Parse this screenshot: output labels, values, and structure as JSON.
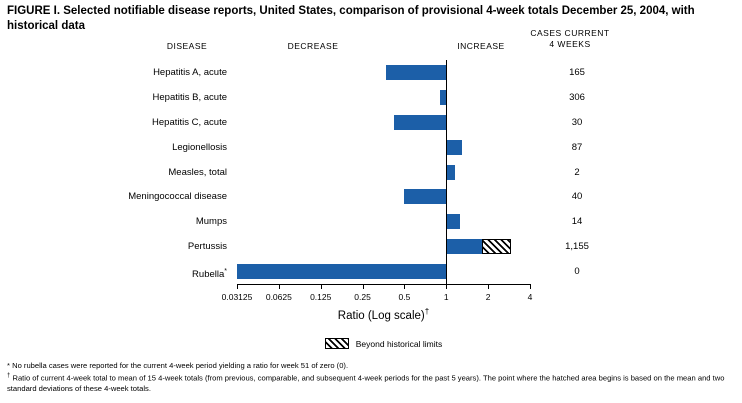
{
  "title": "FIGURE I. Selected notifiable disease reports, United States, comparison of provisional 4-week totals December 25, 2004, with historical data",
  "headers": {
    "disease": "DISEASE",
    "decrease": "DECREASE",
    "increase": "INCREASE",
    "cases_line1": "CASES CURRENT",
    "cases_line2": "4 WEEKS"
  },
  "chart_data": {
    "type": "bar",
    "orientation": "horizontal",
    "scale": "log2",
    "baseline": 1,
    "xlim": [
      0.03125,
      4
    ],
    "ticks": [
      0.03125,
      0.0625,
      0.125,
      0.25,
      0.5,
      1,
      2,
      4
    ],
    "tick_labels": [
      "0.03125",
      "0.0625",
      "0.125",
      "0.25",
      "0.5",
      "1",
      "2",
      "4"
    ],
    "xlabel": "Ratio (Log scale)",
    "xlabel_sup": "†",
    "bar_color": "#1c5fa8",
    "legend": {
      "label": "Beyond historical limits",
      "swatch": "hatched"
    },
    "rows": [
      {
        "disease": "Hepatitis A, acute",
        "ratio": 0.37,
        "cases": "165"
      },
      {
        "disease": "Hepatitis B, acute",
        "ratio": 0.9,
        "cases": "306"
      },
      {
        "disease": "Hepatitis C, acute",
        "ratio": 0.42,
        "cases": "30"
      },
      {
        "disease": "Legionellosis",
        "ratio": 1.3,
        "cases": "87"
      },
      {
        "disease": "Measles, total",
        "ratio": 1.15,
        "cases": "2"
      },
      {
        "disease": "Meningococcal disease",
        "ratio": 0.5,
        "cases": "40"
      },
      {
        "disease": "Mumps",
        "ratio": 1.26,
        "cases": "14"
      },
      {
        "disease": "Pertussis",
        "ratio": 2.9,
        "hatch_from": 1.8,
        "cases": "1,155"
      },
      {
        "disease": "Rubella",
        "sup": "*",
        "ratio": 0.03125,
        "cases": "0"
      }
    ]
  },
  "footnotes": [
    {
      "marker": "*",
      "text": "No rubella cases were reported for the current 4-week period yielding a ratio for week 51 of zero (0)."
    },
    {
      "marker": "†",
      "text": "Ratio of current 4-week total to mean of 15 4-week totals (from previous, comparable, and subsequent 4-week periods for the past 5 years). The point where the hatched area begins is based on the mean and two standard deviations of these 4-week totals."
    }
  ]
}
